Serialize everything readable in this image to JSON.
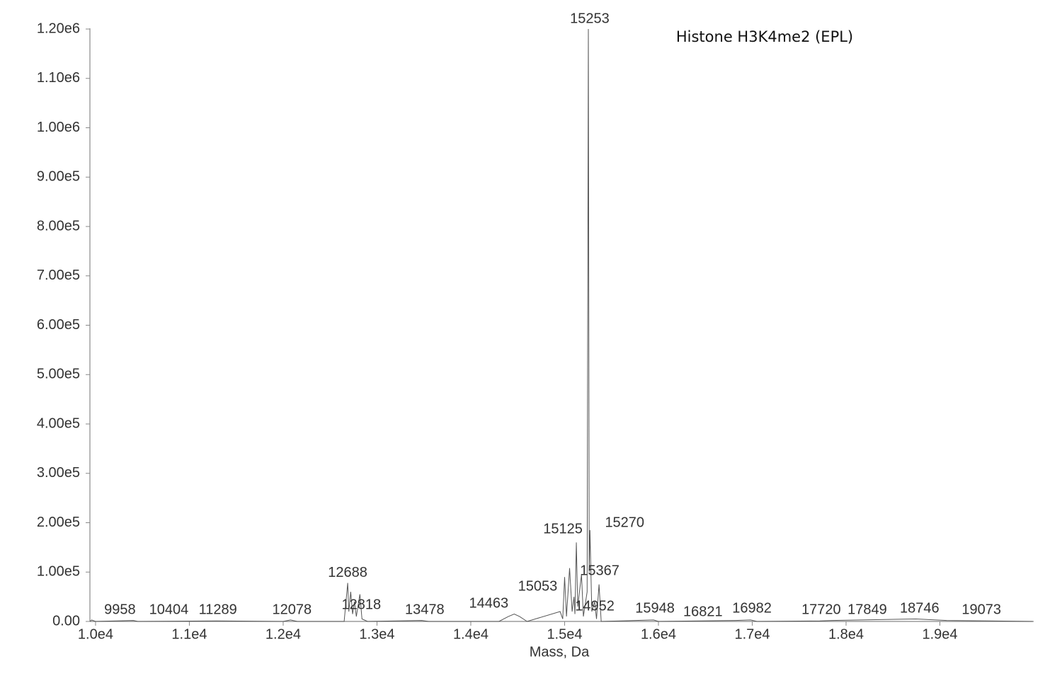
{
  "chart_data": {
    "type": "line",
    "title": "Histone H3K4me2 (EPL)",
    "x_label": "Mass, Da",
    "color": "#555555",
    "x": [
      9940,
      9958,
      10000,
      10404,
      10450,
      11289,
      12000,
      12078,
      12150,
      12650,
      12688,
      12700,
      12720,
      12740,
      12760,
      12780,
      12818,
      12840,
      12900,
      13478,
      13550,
      14300,
      14400,
      14463,
      14520,
      14600,
      14952,
      14980,
      15000,
      15020,
      15053,
      15080,
      15100,
      15110,
      15125,
      15140,
      15180,
      15200,
      15240,
      15253,
      15262,
      15270,
      15290,
      15320,
      15340,
      15367,
      15390,
      15948,
      16000,
      16821,
      16982,
      17050,
      17720,
      17849,
      18746,
      19073,
      19990
    ],
    "values": [
      0,
      3000,
      0,
      2000,
      0,
      1000,
      0,
      3000,
      0,
      0,
      78000,
      20000,
      60000,
      15000,
      40000,
      10000,
      55000,
      5000,
      0,
      2000,
      0,
      0,
      10000,
      15000,
      10000,
      0,
      20000,
      5000,
      90000,
      10000,
      108000,
      20000,
      50000,
      15000,
      160000,
      30000,
      95000,
      10000,
      60000,
      1200000,
      100000,
      185000,
      20000,
      40000,
      5000,
      75000,
      0,
      3000,
      0,
      2000,
      3000,
      0,
      1000,
      2000,
      5000,
      2000,
      0
    ],
    "peak_labels": [
      9958,
      10404,
      11289,
      12078,
      12688,
      12818,
      13478,
      14463,
      15053,
      15125,
      15253,
      15270,
      15367,
      14952,
      15948,
      16821,
      16982,
      17720,
      17849,
      18746,
      19073
    ],
    "xlim": [
      9940,
      20000
    ],
    "ylim": [
      0,
      1200000
    ],
    "xticks": [
      {
        "value": 10000,
        "label": "1.0e4"
      },
      {
        "value": 11000,
        "label": "1.1e4"
      },
      {
        "value": 12000,
        "label": "1.2e4"
      },
      {
        "value": 13000,
        "label": "1.3e4"
      },
      {
        "value": 14000,
        "label": "1.4e4"
      },
      {
        "value": 15000,
        "label": "1.5e4"
      },
      {
        "value": 16000,
        "label": "1.6e4"
      },
      {
        "value": 17000,
        "label": "1.7e4"
      },
      {
        "value": 18000,
        "label": "1.8e4"
      },
      {
        "value": 19000,
        "label": "1.9e4"
      }
    ],
    "yticks": [
      {
        "value": 0,
        "label": "0.00"
      },
      {
        "value": 100000,
        "label": "1.00e5"
      },
      {
        "value": 200000,
        "label": "2.00e5"
      },
      {
        "value": 300000,
        "label": "3.00e5"
      },
      {
        "value": 400000,
        "label": "4.00e5"
      },
      {
        "value": 500000,
        "label": "5.00e5"
      },
      {
        "value": 600000,
        "label": "6.00e5"
      },
      {
        "value": 700000,
        "label": "7.00e5"
      },
      {
        "value": 800000,
        "label": "8.00e5"
      },
      {
        "value": 900000,
        "label": "9.00e5"
      },
      {
        "value": 1000000,
        "label": "1.00e6"
      },
      {
        "value": 1100000,
        "label": "1.10e6"
      },
      {
        "value": 1200000,
        "label": "1.20e6"
      }
    ]
  }
}
